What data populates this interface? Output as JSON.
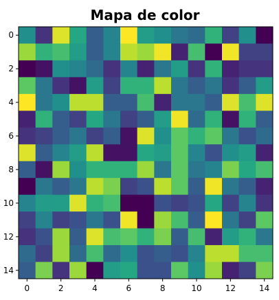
{
  "chart_data": {
    "type": "heatmap",
    "title": "Mapa de color",
    "xlabel": "",
    "ylabel": "",
    "colormap": "viridis",
    "vlim": [
      0,
      1
    ],
    "xlim": [
      -0.5,
      14.5
    ],
    "ylim": [
      14.5,
      -0.5
    ],
    "x_ticks": [
      0,
      2,
      4,
      6,
      8,
      10,
      12,
      14
    ],
    "y_ticks": [
      0,
      2,
      4,
      6,
      8,
      10,
      12,
      14
    ],
    "grid": false,
    "values": [
      [
        0.5,
        0.15,
        0.95,
        0.6,
        0.3,
        0.45,
        1.0,
        0.55,
        0.5,
        0.4,
        0.35,
        0.65,
        0.2,
        0.5,
        0.0
      ],
      [
        0.85,
        0.65,
        0.7,
        0.55,
        0.3,
        0.45,
        0.9,
        0.85,
        0.98,
        0.1,
        0.7,
        0.0,
        0.98,
        0.2,
        0.2
      ],
      [
        0.0,
        0.05,
        0.5,
        0.45,
        0.35,
        0.15,
        0.45,
        0.1,
        0.4,
        0.55,
        0.15,
        0.65,
        0.1,
        0.15,
        0.15
      ],
      [
        0.75,
        0.4,
        0.15,
        0.05,
        0.55,
        0.2,
        0.65,
        0.65,
        0.9,
        0.4,
        0.3,
        0.4,
        0.15,
        0.3,
        0.55
      ],
      [
        1.0,
        0.4,
        0.5,
        0.9,
        0.9,
        0.3,
        0.3,
        0.7,
        0.1,
        0.4,
        0.4,
        0.3,
        0.95,
        0.7,
        0.95
      ],
      [
        0.1,
        0.65,
        0.3,
        0.2,
        0.6,
        0.4,
        0.2,
        0.3,
        0.55,
        0.98,
        0.35,
        0.65,
        0.05,
        0.65,
        0.3
      ],
      [
        0.15,
        0.2,
        0.3,
        0.4,
        0.2,
        0.3,
        0.05,
        0.95,
        0.5,
        0.75,
        0.65,
        0.75,
        0.4,
        0.25,
        0.35
      ],
      [
        0.95,
        0.3,
        0.45,
        0.55,
        0.9,
        0.05,
        0.05,
        0.6,
        0.55,
        0.75,
        0.45,
        0.25,
        0.5,
        0.55,
        0.1
      ],
      [
        0.3,
        0.05,
        0.85,
        0.5,
        0.65,
        0.65,
        0.65,
        0.85,
        0.4,
        0.75,
        0.4,
        0.45,
        0.8,
        0.6,
        0.7
      ],
      [
        0.0,
        0.4,
        0.3,
        0.4,
        0.9,
        0.8,
        0.2,
        0.25,
        0.9,
        0.75,
        0.3,
        0.98,
        0.4,
        0.3,
        0.1
      ],
      [
        0.45,
        0.55,
        0.55,
        0.95,
        0.65,
        0.7,
        0.0,
        0.0,
        0.25,
        0.2,
        0.25,
        0.6,
        0.2,
        0.45,
        0.15
      ],
      [
        0.2,
        0.45,
        0.2,
        0.25,
        0.4,
        0.25,
        0.98,
        0.0,
        0.85,
        0.7,
        0.3,
        1.0,
        0.4,
        0.2,
        0.75
      ],
      [
        0.15,
        0.25,
        0.85,
        0.3,
        0.95,
        0.7,
        0.75,
        0.65,
        0.8,
        0.3,
        0.7,
        0.1,
        0.55,
        0.65,
        0.4
      ],
      [
        0.35,
        0.2,
        0.85,
        0.35,
        0.7,
        0.35,
        0.5,
        0.25,
        0.3,
        0.25,
        0.45,
        0.9,
        0.9,
        0.7,
        0.7
      ],
      [
        0.3,
        0.8,
        0.15,
        0.85,
        0.0,
        0.55,
        0.6,
        0.25,
        0.25,
        0.75,
        0.5,
        0.85,
        0.1,
        0.2,
        0.8
      ]
    ]
  }
}
